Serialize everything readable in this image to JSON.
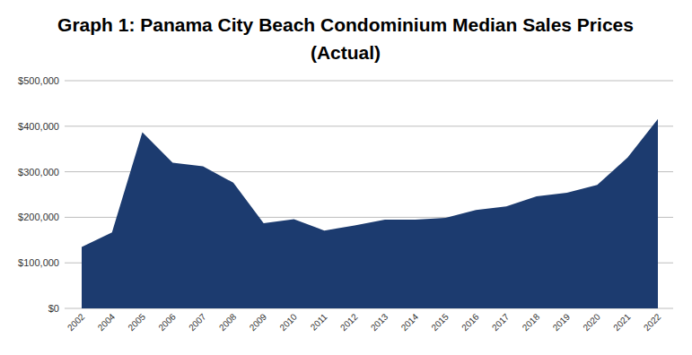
{
  "chart_data": {
    "type": "area",
    "title": "Graph 1: Panama City Beach Condominium Median Sales Prices (Actual)",
    "categories": [
      "2002",
      "2004",
      "2005",
      "2006",
      "2007",
      "2008",
      "2009",
      "2010",
      "2011",
      "2012",
      "2013",
      "2014",
      "2015",
      "2016",
      "2017",
      "2018",
      "2019",
      "2020",
      "2021",
      "2022"
    ],
    "values": [
      135000,
      167000,
      387000,
      320000,
      312000,
      276000,
      187000,
      196000,
      171000,
      182000,
      195000,
      195000,
      199000,
      216000,
      224000,
      246000,
      254000,
      271000,
      331000,
      416000
    ],
    "color": "#1c3b6f",
    "ylim": [
      0,
      500000
    ],
    "yticks": [
      {
        "value": 0,
        "label": "$0"
      },
      {
        "value": 100000,
        "label": "$100,000"
      },
      {
        "value": 200000,
        "label": "$200,000"
      },
      {
        "value": 300000,
        "label": "$300,000"
      },
      {
        "value": 400000,
        "label": "$400,000"
      },
      {
        "value": 500000,
        "label": "$500,000"
      }
    ],
    "grid": true
  }
}
